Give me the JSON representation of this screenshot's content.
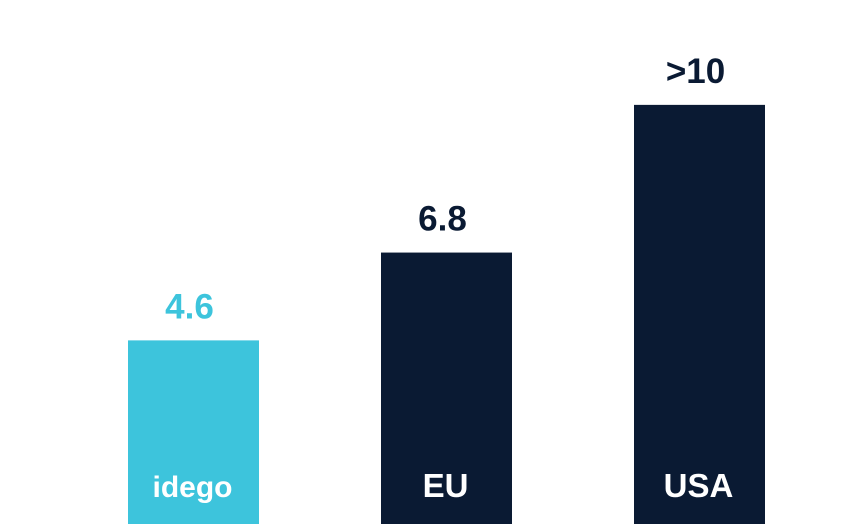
{
  "chart_data": {
    "type": "bar",
    "categories": [
      "idego",
      "EU",
      "USA"
    ],
    "values": [
      4.6,
      6.8,
      10.5
    ],
    "value_labels": [
      "4.6",
      "6.8",
      ">10"
    ],
    "title": "",
    "xlabel": "",
    "ylabel": "",
    "ylim": [
      0,
      12
    ],
    "grid": false,
    "legend": "none",
    "colors": {
      "highlight": "#3dc4dc",
      "default": "#0a1a33"
    },
    "bar_colors": [
      "#3dc4dc",
      "#0a1a33",
      "#0a1a33"
    ],
    "value_label_colors": [
      "#3dc4dc",
      "#0a1a33",
      "#0a1a33"
    ],
    "logo_icon": "idego-logo"
  }
}
